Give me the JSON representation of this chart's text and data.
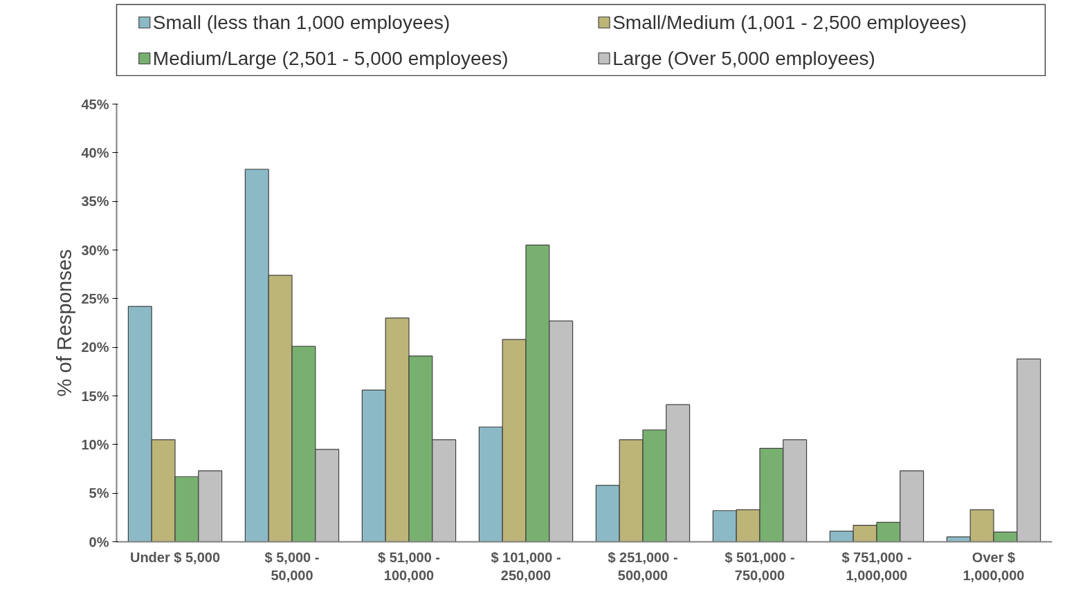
{
  "chart_data": {
    "type": "bar",
    "ylabel": "% of Responses",
    "categories": [
      "Under $ 5,000",
      "$ 5,000 - 50,000",
      "$ 51,000 - 100,000",
      "$ 101,000 - 250,000",
      "$ 251,000 - 500,000",
      "$ 501,000 - 750,000",
      "$ 751,000 - 1,000,000",
      "Over $ 1,000,000"
    ],
    "series": [
      {
        "name": "Small (less than 1,000 employees)",
        "color": "#8bbac6",
        "values": [
          24.2,
          38.3,
          15.6,
          11.8,
          5.8,
          3.2,
          1.1,
          0.5
        ]
      },
      {
        "name": "Small/Medium (1,001 - 2,500 employees)",
        "color": "#bdb478",
        "values": [
          10.5,
          27.4,
          23.0,
          20.8,
          10.5,
          3.3,
          1.7,
          3.3
        ]
      },
      {
        "name": "Medium/Large (2,501 - 5,000 employees)",
        "color": "#78b070",
        "values": [
          6.7,
          20.1,
          19.1,
          30.5,
          11.5,
          9.6,
          2.0,
          1.0
        ]
      },
      {
        "name": "Large (Over 5,000 employees)",
        "color": "#c0c0c0",
        "values": [
          7.3,
          9.5,
          10.5,
          22.7,
          14.1,
          10.5,
          7.3,
          18.8
        ]
      }
    ],
    "ylim": [
      0,
      45
    ],
    "yticks": [
      {
        "value": 0,
        "label": "0%"
      },
      {
        "value": 5,
        "label": "5%"
      },
      {
        "value": 10,
        "label": "10%"
      },
      {
        "value": 15,
        "label": "15%"
      },
      {
        "value": 20,
        "label": "20%"
      },
      {
        "value": 25,
        "label": "25%"
      },
      {
        "value": 30,
        "label": "30%"
      },
      {
        "value": 35,
        "label": "35%"
      },
      {
        "value": 40,
        "label": "40%"
      },
      {
        "value": 45,
        "label": "45%"
      }
    ],
    "grid": false,
    "legend": "top"
  }
}
